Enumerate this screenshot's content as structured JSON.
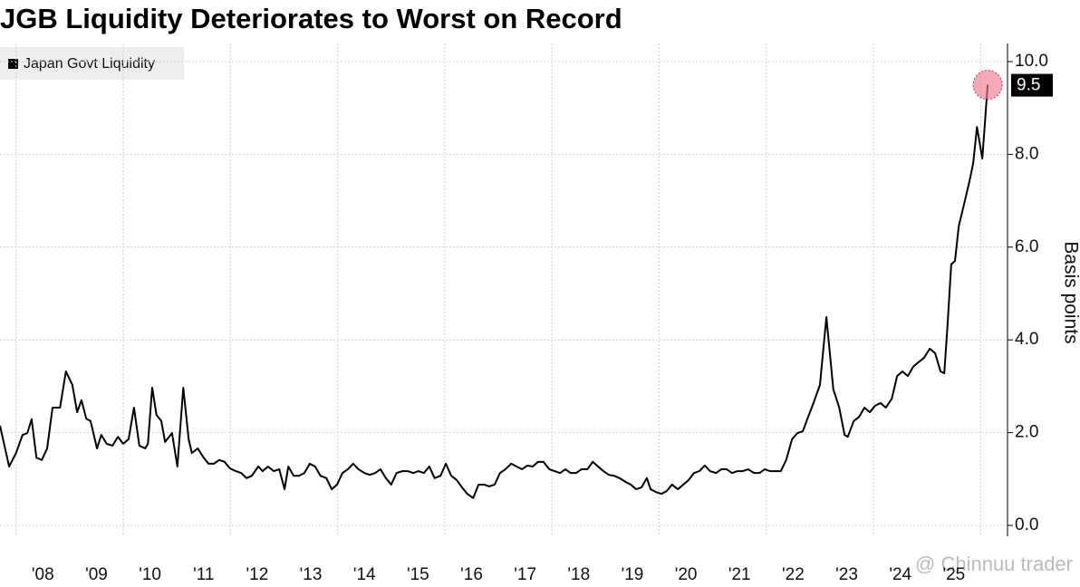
{
  "chart_data": {
    "type": "line",
    "title": "JGB Liquidity Deteriorates to Worst on Record",
    "y_axis_label": "Basis points",
    "watermark": "@ Chinnuu trader",
    "legend_position": "top-left",
    "grid": true,
    "xlim": [
      2007.7,
      2026.5
    ],
    "ylim": [
      0,
      10
    ],
    "yticks": [
      {
        "value": 0,
        "label": "0.0"
      },
      {
        "value": 2,
        "label": "2.0"
      },
      {
        "value": 4,
        "label": "4.0"
      },
      {
        "value": 6,
        "label": "6.0"
      },
      {
        "value": 8,
        "label": "8.0"
      },
      {
        "value": 10,
        "label": "10.0"
      }
    ],
    "xticks": [
      {
        "value": 2008.5,
        "label": "'08"
      },
      {
        "value": 2009.5,
        "label": "'09"
      },
      {
        "value": 2010.5,
        "label": "'10"
      },
      {
        "value": 2011.5,
        "label": "'11"
      },
      {
        "value": 2012.5,
        "label": "'12"
      },
      {
        "value": 2013.5,
        "label": "'13"
      },
      {
        "value": 2014.5,
        "label": "'14"
      },
      {
        "value": 2015.5,
        "label": "'15"
      },
      {
        "value": 2016.5,
        "label": "'16"
      },
      {
        "value": 2017.5,
        "label": "'17"
      },
      {
        "value": 2018.5,
        "label": "'18"
      },
      {
        "value": 2019.5,
        "label": "'19"
      },
      {
        "value": 2020.5,
        "label": "'20"
      },
      {
        "value": 2021.5,
        "label": "'21"
      },
      {
        "value": 2022.5,
        "label": "'22"
      },
      {
        "value": 2023.5,
        "label": "'23"
      },
      {
        "value": 2024.5,
        "label": "'24"
      },
      {
        "value": 2025.5,
        "label": "'25"
      }
    ],
    "xgrid": [
      2008,
      2010,
      2012,
      2014,
      2016,
      2018,
      2020,
      2022,
      2024,
      2026
    ],
    "x": [
      2007.7,
      2007.87,
      2008.0,
      2008.12,
      2008.21,
      2008.29,
      2008.38,
      2008.48,
      2008.58,
      2008.68,
      2008.82,
      2008.93,
      2009.05,
      2009.14,
      2009.22,
      2009.31,
      2009.39,
      2009.51,
      2009.59,
      2009.69,
      2009.8,
      2009.9,
      2010.0,
      2010.1,
      2010.2,
      2010.3,
      2010.41,
      2010.46,
      2010.54,
      2010.62,
      2010.71,
      2010.78,
      2010.91,
      2011.01,
      2011.12,
      2011.22,
      2011.28,
      2011.39,
      2011.5,
      2011.59,
      2011.69,
      2011.79,
      2011.89,
      2011.99,
      2012.1,
      2012.2,
      2012.3,
      2012.4,
      2012.52,
      2012.6,
      2012.7,
      2012.81,
      2012.91,
      2013.01,
      2013.08,
      2013.18,
      2013.28,
      2013.38,
      2013.48,
      2013.58,
      2013.68,
      2013.79,
      2013.89,
      2013.99,
      2014.09,
      2014.19,
      2014.29,
      2014.39,
      2014.5,
      2014.6,
      2014.7,
      2014.8,
      2014.9,
      2015.0,
      2015.1,
      2015.21,
      2015.31,
      2015.41,
      2015.51,
      2015.61,
      2015.71,
      2015.81,
      2015.92,
      2016.02,
      2016.12,
      2016.22,
      2016.32,
      2016.42,
      2016.53,
      2016.63,
      2016.73,
      2016.83,
      2016.93,
      2017.03,
      2017.13,
      2017.24,
      2017.34,
      2017.44,
      2017.54,
      2017.64,
      2017.74,
      2017.84,
      2017.95,
      2018.05,
      2018.15,
      2018.25,
      2018.35,
      2018.45,
      2018.55,
      2018.66,
      2018.76,
      2018.86,
      2018.96,
      2019.06,
      2019.16,
      2019.26,
      2019.37,
      2019.47,
      2019.57,
      2019.67,
      2019.77,
      2019.84,
      2019.94,
      2020.04,
      2020.14,
      2020.24,
      2020.35,
      2020.45,
      2020.55,
      2020.65,
      2020.75,
      2020.85,
      2020.95,
      2021.06,
      2021.16,
      2021.26,
      2021.36,
      2021.46,
      2021.56,
      2021.66,
      2021.77,
      2021.87,
      2021.97,
      2022.07,
      2022.17,
      2022.27,
      2022.37,
      2022.48,
      2022.58,
      2022.68,
      2022.78,
      2022.88,
      2023.0,
      2023.12,
      2023.25,
      2023.36,
      2023.46,
      2023.52,
      2023.63,
      2023.73,
      2023.83,
      2023.93,
      2024.03,
      2024.13,
      2024.23,
      2024.34,
      2024.44,
      2024.54,
      2024.64,
      2024.74,
      2024.84,
      2024.94,
      2025.05,
      2025.15,
      2025.25,
      2025.32,
      2025.38,
      2025.45,
      2025.52,
      2025.59,
      2025.69,
      2025.79,
      2025.86,
      2025.93,
      2026.03,
      2026.13
    ],
    "series": [
      {
        "name": "Japan Govt Liquidity",
        "color": "#000000",
        "values": [
          2.15,
          1.27,
          1.56,
          1.95,
          1.99,
          2.29,
          1.46,
          1.41,
          1.66,
          2.54,
          2.54,
          3.32,
          3.03,
          2.44,
          2.7,
          2.3,
          2.25,
          1.66,
          1.95,
          1.76,
          1.72,
          1.91,
          1.76,
          1.86,
          2.54,
          1.72,
          1.66,
          1.76,
          2.97,
          2.38,
          2.25,
          1.8,
          1.99,
          1.27,
          2.97,
          1.86,
          1.56,
          1.66,
          1.46,
          1.33,
          1.33,
          1.41,
          1.37,
          1.23,
          1.17,
          1.13,
          1.02,
          1.07,
          1.27,
          1.17,
          1.27,
          1.17,
          1.21,
          0.78,
          1.27,
          1.07,
          1.07,
          1.13,
          1.33,
          1.27,
          1.07,
          1.02,
          0.78,
          0.88,
          1.13,
          1.21,
          1.33,
          1.21,
          1.13,
          1.09,
          1.13,
          1.21,
          1.02,
          0.88,
          1.13,
          1.17,
          1.17,
          1.13,
          1.17,
          1.13,
          1.27,
          1.02,
          1.07,
          1.33,
          1.07,
          0.98,
          0.82,
          0.68,
          0.59,
          0.88,
          0.88,
          0.84,
          0.88,
          1.13,
          1.21,
          1.33,
          1.27,
          1.21,
          1.29,
          1.27,
          1.37,
          1.37,
          1.21,
          1.17,
          1.13,
          1.21,
          1.13,
          1.13,
          1.21,
          1.21,
          1.37,
          1.27,
          1.17,
          1.09,
          1.07,
          1.02,
          0.94,
          0.88,
          0.78,
          0.82,
          1.02,
          0.78,
          0.72,
          0.68,
          0.74,
          0.88,
          0.78,
          0.88,
          0.98,
          1.13,
          1.17,
          1.29,
          1.17,
          1.13,
          1.21,
          1.21,
          1.13,
          1.17,
          1.17,
          1.21,
          1.13,
          1.13,
          1.21,
          1.17,
          1.17,
          1.17,
          1.41,
          1.86,
          1.99,
          2.03,
          2.34,
          2.64,
          3.03,
          4.49,
          2.93,
          2.54,
          1.95,
          1.91,
          2.25,
          2.34,
          2.54,
          2.44,
          2.58,
          2.64,
          2.54,
          2.73,
          3.22,
          3.32,
          3.22,
          3.42,
          3.52,
          3.61,
          3.81,
          3.71,
          3.32,
          3.28,
          4.3,
          5.63,
          5.7,
          6.45,
          6.93,
          7.42,
          7.81,
          8.59,
          7.91,
          9.5
        ]
      }
    ]
  }
}
